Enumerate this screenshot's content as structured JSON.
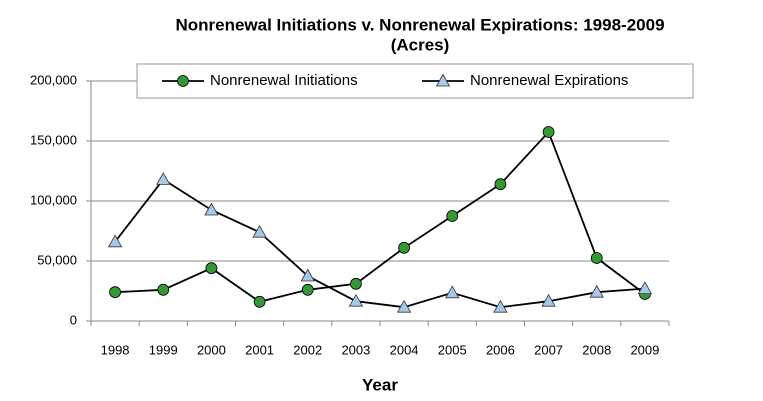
{
  "chart_data": {
    "type": "line",
    "title": "Nonrenewal Initiations v. Nonrenewal Expirations: 1998-2009",
    "subtitle": "(Acres)",
    "x_label": "Year",
    "categories": [
      "1998",
      "1999",
      "2000",
      "2001",
      "2002",
      "2003",
      "2004",
      "2005",
      "2006",
      "2007",
      "2008",
      "2009"
    ],
    "series": [
      {
        "name": "Nonrenewal Initiations",
        "color": "#339933",
        "marker": "circle",
        "values": [
          24000,
          26000,
          44000,
          16000,
          26000,
          31000,
          61000,
          87500,
          114000,
          157500,
          52500,
          22500
        ]
      },
      {
        "name": "Nonrenewal Expirations",
        "color": "#a6c8ec",
        "marker": "triangle",
        "values": [
          66000,
          118000,
          92500,
          74000,
          37500,
          16500,
          11500,
          23500,
          11500,
          16500,
          24000,
          27000
        ]
      }
    ],
    "ylim": [
      0,
      200000
    ],
    "yticks": [
      0,
      {
        "value": 50000,
        "label": "50,000"
      },
      {
        "value": 100000,
        "label": "100,000"
      },
      {
        "value": 150000,
        "label": "150,000"
      },
      {
        "value": 200000,
        "label": "200,000"
      }
    ],
    "grid": true,
    "legend": "top"
  }
}
